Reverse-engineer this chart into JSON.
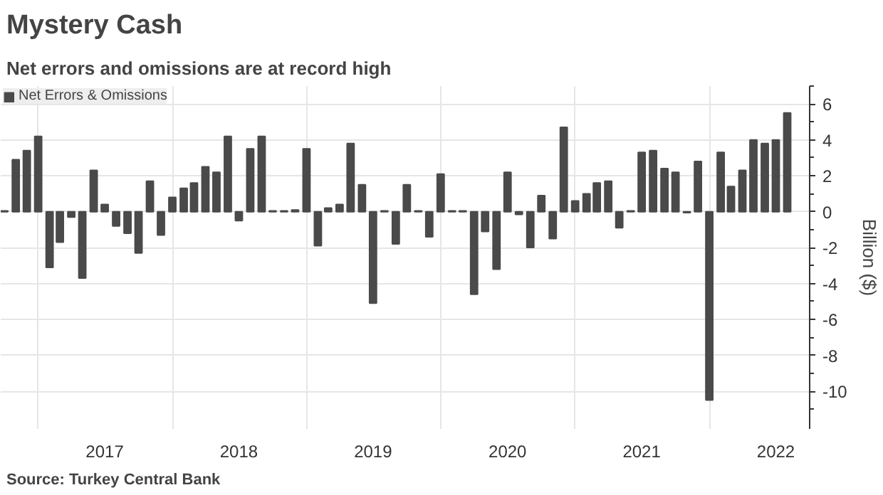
{
  "chart_data": {
    "type": "bar",
    "title": "Mystery Cash",
    "subtitle": "Net errors and omissions are at record high",
    "ylabel": "Billion ($)",
    "x": [
      "2016-10",
      "2016-11",
      "2016-12",
      "2017-01",
      "2017-02",
      "2017-03",
      "2017-04",
      "2017-05",
      "2017-06",
      "2017-07",
      "2017-08",
      "2017-09",
      "2017-10",
      "2017-11",
      "2017-12",
      "2018-01",
      "2018-02",
      "2018-03",
      "2018-04",
      "2018-05",
      "2018-06",
      "2018-07",
      "2018-08",
      "2018-09",
      "2018-10",
      "2018-11",
      "2018-12",
      "2019-01",
      "2019-02",
      "2019-03",
      "2019-04",
      "2019-05",
      "2019-06",
      "2019-07",
      "2019-08",
      "2019-09",
      "2019-10",
      "2019-11",
      "2019-12",
      "2020-01",
      "2020-02",
      "2020-03",
      "2020-04",
      "2020-05",
      "2020-06",
      "2020-07",
      "2020-08",
      "2020-09",
      "2020-10",
      "2020-11",
      "2020-12",
      "2021-01",
      "2021-02",
      "2021-03",
      "2021-04",
      "2021-05",
      "2021-06",
      "2021-07",
      "2021-08",
      "2021-09",
      "2021-10",
      "2021-11",
      "2021-12",
      "2022-01",
      "2022-02",
      "2022-03",
      "2022-04",
      "2022-05",
      "2022-06",
      "2022-07",
      "2022-08"
    ],
    "series": [
      {
        "name": "Net Errors & Omissions",
        "color": "#4a4a4a",
        "values": [
          0.05,
          2.9,
          3.4,
          4.2,
          -3.1,
          -1.7,
          -0.3,
          -3.7,
          2.3,
          0.4,
          -0.8,
          -1.2,
          -2.3,
          1.7,
          -1.3,
          0.8,
          1.3,
          1.6,
          2.5,
          2.2,
          4.2,
          -0.5,
          3.5,
          4.2,
          0.05,
          0.05,
          0.1,
          3.5,
          -1.9,
          0.2,
          0.4,
          3.8,
          1.5,
          -5.1,
          0.05,
          -1.8,
          1.5,
          0.05,
          -1.4,
          2.1,
          0.05,
          0.05,
          -4.6,
          -1.1,
          -3.2,
          2.2,
          -0.15,
          -2.0,
          0.9,
          -1.5,
          4.7,
          0.6,
          1.0,
          1.6,
          1.7,
          -0.9,
          0.05,
          3.3,
          3.4,
          2.4,
          2.2,
          -0.05,
          2.8,
          -10.5,
          3.3,
          1.4,
          2.3,
          4.0,
          3.8,
          4.0,
          5.5
        ]
      }
    ],
    "xlim": [
      "2016-09-21",
      "2022-10-01"
    ],
    "xticks": [
      {
        "value": "2017-01",
        "label": null
      },
      {
        "value": "2017-07",
        "label": "2017"
      },
      {
        "value": "2018-01",
        "label": null
      },
      {
        "value": "2018-07",
        "label": "2018"
      },
      {
        "value": "2019-01",
        "label": null
      },
      {
        "value": "2019-07",
        "label": "2019"
      },
      {
        "value": "2020-01",
        "label": null
      },
      {
        "value": "2020-07",
        "label": "2020"
      },
      {
        "value": "2021-01",
        "label": null
      },
      {
        "value": "2021-07",
        "label": "2021"
      },
      {
        "value": "2022-01",
        "label": null
      },
      {
        "value": "2022-07",
        "label": "2022"
      }
    ],
    "ylim": [
      -12.1,
      7
    ],
    "yticks": [
      -10,
      -8,
      -6,
      -4,
      -2,
      0,
      2,
      4,
      6
    ],
    "grid": true,
    "legend": "top left",
    "annotations": [
      "Source: Turkey Central Bank"
    ]
  }
}
